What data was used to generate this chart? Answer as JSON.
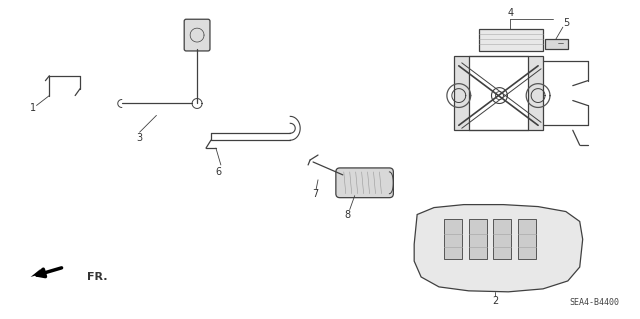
{
  "bg_color": "#ffffff",
  "line_color": "#404040",
  "label_color": "#333333",
  "diagram_code": "SEA4-B4400",
  "figsize": [
    6.4,
    3.19
  ],
  "dpi": 100,
  "lw": 0.9
}
